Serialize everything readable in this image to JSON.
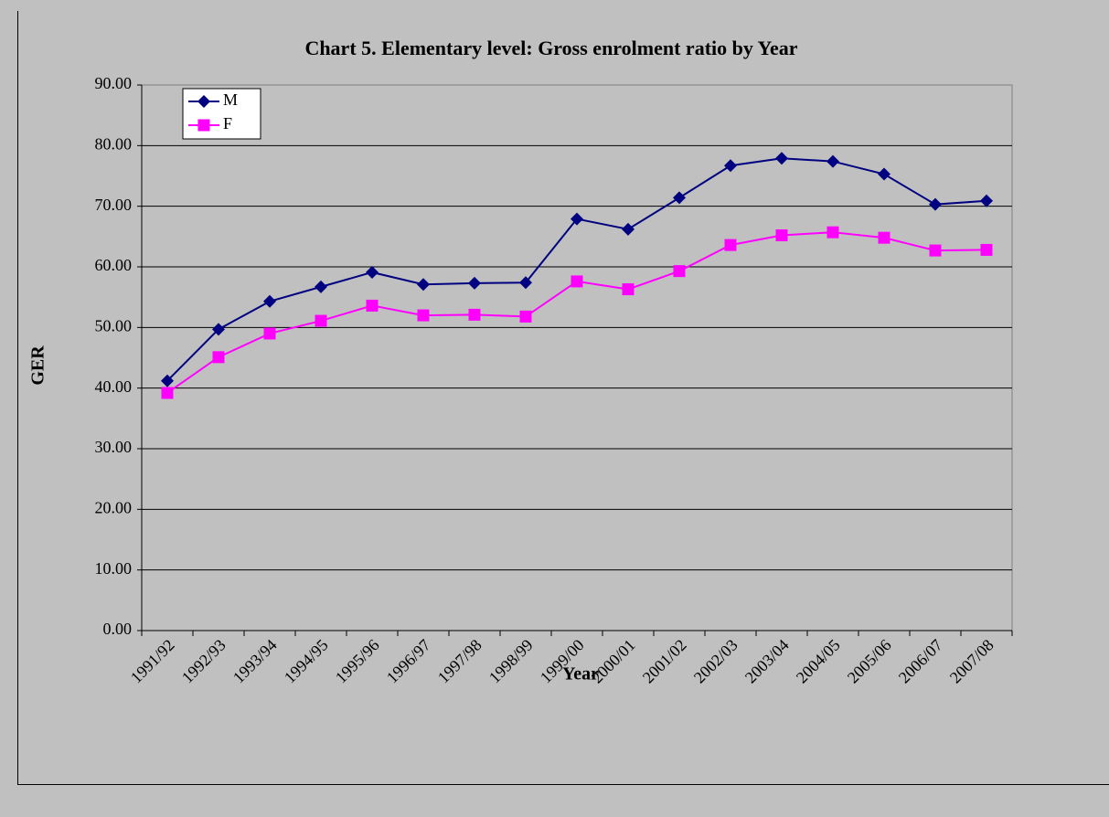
{
  "chart_data": {
    "type": "line",
    "title": "Chart 5.  Elementary level: Gross enrolment ratio by  Year",
    "x_label": "Year",
    "y_label": "GER",
    "categories": [
      "1991/92",
      "1992/93",
      "1993/94",
      "1994/95",
      "1995/96",
      "1996/97",
      "1997/98",
      "1998/99",
      "1999/00",
      "2000/01",
      "2001/02",
      "2002/03",
      "2003/04",
      "2004/05",
      "2005/06",
      "2006/07",
      "2007/08"
    ],
    "series": [
      {
        "name": "M",
        "color": "#000080",
        "marker": "diamond",
        "values": [
          41.2,
          49.7,
          54.3,
          56.7,
          59.1,
          57.1,
          57.3,
          57.4,
          67.9,
          66.2,
          71.4,
          76.7,
          77.9,
          77.4,
          75.3,
          70.3,
          70.9
        ]
      },
      {
        "name": "F",
        "color": "#ff00ff",
        "marker": "square",
        "values": [
          39.2,
          45.1,
          49.0,
          51.1,
          53.6,
          52.0,
          52.1,
          51.8,
          57.6,
          56.3,
          59.3,
          63.6,
          65.2,
          65.7,
          64.8,
          62.7,
          62.8
        ]
      }
    ],
    "ylim": [
      0,
      90
    ],
    "yticks": [
      {
        "value": 0,
        "label": "0.00"
      },
      {
        "value": 10,
        "label": "10.00"
      },
      {
        "value": 20,
        "label": "20.00"
      },
      {
        "value": 30,
        "label": "30.00"
      },
      {
        "value": 40,
        "label": "40.00"
      },
      {
        "value": 50,
        "label": "50.00"
      },
      {
        "value": 60,
        "label": "60.00"
      },
      {
        "value": 70,
        "label": "70.00"
      },
      {
        "value": 80,
        "label": "80.00"
      },
      {
        "value": 90,
        "label": "90.00"
      }
    ],
    "grid": true,
    "legend": "top-left"
  }
}
